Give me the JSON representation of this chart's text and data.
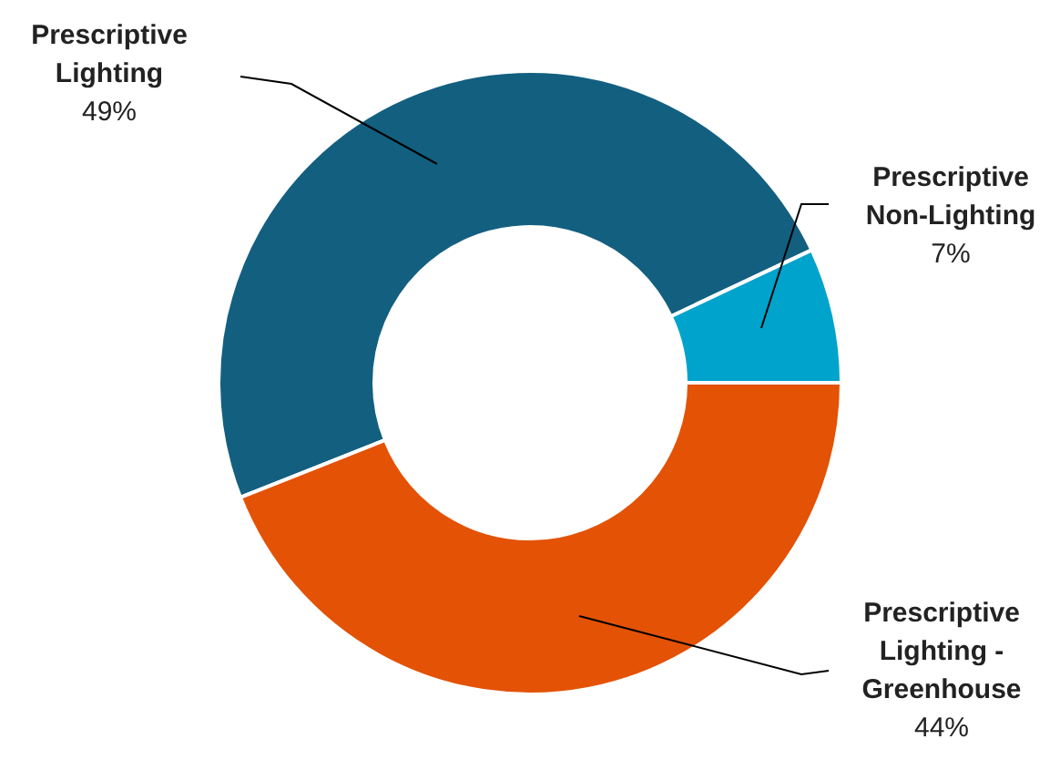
{
  "chart_data": {
    "type": "donut",
    "categories": [
      "Prescriptive Lighting",
      "Prescriptive Non-Lighting",
      "Prescriptive Lighting - Greenhouse"
    ],
    "values": [
      49,
      7,
      44
    ],
    "colors": [
      "#135f80",
      "#00a3cc",
      "#e35205"
    ],
    "value_labels": [
      "49%",
      "7%",
      "44%"
    ],
    "legend": false
  }
}
